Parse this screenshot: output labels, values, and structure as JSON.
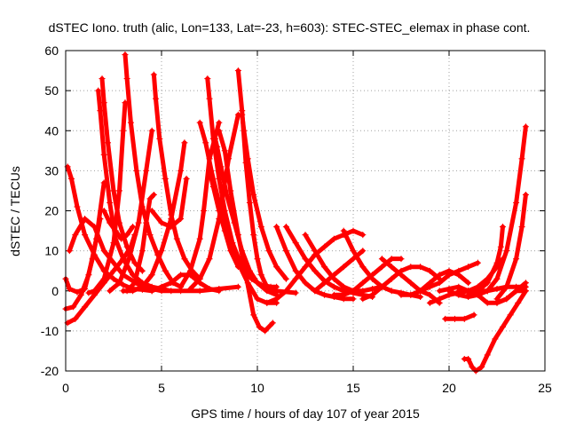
{
  "chart_data": {
    "type": "scatter",
    "title": "dSTEC Iono. truth (alic, Lon=133, Lat=-23, h=603): STEC-STEC_elemax in phase cont.",
    "xlabel": "GPS time / hours of day 107 of year 2015",
    "ylabel": "dSTEC  / TECUs",
    "xlim": [
      0,
      25
    ],
    "ylim": [
      -20,
      60
    ],
    "xticks": [
      "0",
      "5",
      "10",
      "15",
      "20",
      "25"
    ],
    "yticks": [
      "-20",
      "-10",
      "0",
      "10",
      "20",
      "30",
      "40",
      "50",
      "60"
    ],
    "grid": true,
    "marker": "+",
    "color": "#ff0000",
    "series": [
      {
        "x": [
          0.0,
          0.2,
          0.6,
          1.0,
          1.4,
          1.8
        ],
        "y": [
          3,
          0.5,
          -0.3,
          0.5,
          8,
          18
        ]
      },
      {
        "x": [
          0.1,
          0.3,
          0.6,
          1.0,
          1.5,
          2.0,
          2.5,
          3.0,
          3.5,
          4.0,
          4.5
        ],
        "y": [
          31,
          28,
          21,
          14,
          9,
          5,
          3,
          1.5,
          0.5,
          0.3,
          0
        ]
      },
      {
        "x": [
          0.0,
          0.4,
          0.8,
          1.2,
          1.6,
          2.0
        ],
        "y": [
          -4.5,
          -4,
          -1,
          4,
          13,
          27
        ]
      },
      {
        "x": [
          0.1,
          0.5,
          1.0,
          1.5,
          2.0,
          2.5,
          3.0,
          3.4,
          3.6
        ],
        "y": [
          -8,
          -7,
          -4,
          -1,
          2,
          5,
          8,
          11,
          14
        ]
      },
      {
        "x": [
          0.2,
          0.5,
          1.0,
          1.5,
          2.0,
          3.0,
          4.0,
          5.0,
          6.0,
          7.0,
          8.0,
          9.0
        ],
        "y": [
          10,
          14,
          18,
          16,
          10,
          4,
          1,
          0,
          0,
          0,
          0.5,
          1
        ]
      },
      {
        "x": [
          1.7,
          1.8,
          2.0,
          2.3,
          2.6,
          3.0,
          3.5,
          4.0,
          4.5,
          5.0,
          5.5
        ],
        "y": [
          50,
          45,
          34,
          22,
          13,
          8,
          4,
          2,
          1,
          0.5,
          0
        ]
      },
      {
        "x": [
          1.9,
          2.0,
          2.2,
          2.5,
          2.8,
          3.2,
          3.6,
          4.0
        ],
        "y": [
          53,
          47,
          37,
          25,
          17,
          11,
          7,
          5
        ]
      },
      {
        "x": [
          1.2,
          1.5,
          2.0,
          2.5,
          2.8,
          3.0,
          3.1
        ],
        "y": [
          -0.5,
          0,
          3,
          12,
          25,
          40,
          47
        ]
      },
      {
        "x": [
          3.1,
          3.2,
          3.4,
          3.7,
          4.0,
          4.4,
          4.8,
          5.2,
          5.6,
          6.0
        ],
        "y": [
          59,
          53,
          42,
          30,
          21,
          14,
          9,
          5,
          2,
          1
        ]
      },
      {
        "x": [
          2.0,
          2.3,
          2.6,
          2.9,
          3.2,
          3.5
        ],
        "y": [
          20,
          17,
          15,
          13,
          14,
          16
        ]
      },
      {
        "x": [
          2.3,
          2.8,
          3.3,
          3.8,
          4.2,
          4.5
        ],
        "y": [
          0,
          2,
          8,
          17,
          30,
          40
        ]
      },
      {
        "x": [
          4.6,
          4.7,
          4.9,
          5.2,
          5.5,
          5.8,
          6.2,
          6.6,
          7.0
        ],
        "y": [
          54,
          48,
          38,
          28,
          19,
          13,
          8,
          5,
          3
        ]
      },
      {
        "x": [
          3.2,
          3.6,
          4.0,
          4.2,
          4.4,
          4.6
        ],
        "y": [
          0,
          2,
          10,
          17,
          23,
          24
        ]
      },
      {
        "x": [
          3.0,
          3.5,
          4.0,
          4.5,
          5.0,
          5.5,
          6.0,
          6.2
        ],
        "y": [
          0,
          0,
          1,
          4,
          10,
          18,
          30,
          37
        ]
      },
      {
        "x": [
          4.5,
          5.0,
          5.5,
          6.0,
          6.5,
          7.0,
          7.5,
          8.0
        ],
        "y": [
          0,
          1,
          2,
          4,
          4,
          2,
          0.5,
          0
        ]
      },
      {
        "x": [
          4.5,
          5.0,
          5.5,
          6.0,
          6.3
        ],
        "y": [
          20,
          17,
          16,
          18,
          28
        ]
      },
      {
        "x": [
          6.5,
          7.0,
          7.5,
          8.0,
          8.5,
          9.0
        ],
        "y": [
          0.5,
          3,
          8,
          18,
          33,
          44
        ]
      },
      {
        "x": [
          7.4,
          7.5,
          7.7,
          8.0,
          8.3,
          8.7,
          9.2,
          9.7,
          10.2,
          10.7,
          11.0
        ],
        "y": [
          53,
          48,
          38,
          28,
          20,
          12,
          6,
          3,
          1.5,
          1,
          1
        ]
      },
      {
        "x": [
          7.8,
          7.9,
          8.1,
          8.4,
          8.8,
          9.2,
          9.6,
          10.0,
          10.5,
          11.0
        ],
        "y": [
          38,
          36,
          31,
          24,
          17,
          10,
          5,
          2,
          0,
          -1
        ]
      },
      {
        "x": [
          7.0,
          7.3,
          7.6,
          8.0,
          8.5,
          9.0,
          9.5,
          10.0,
          10.5,
          11.0
        ],
        "y": [
          42,
          37,
          30,
          22,
          14,
          7,
          2,
          -2,
          -3,
          -3
        ]
      },
      {
        "x": [
          8.0,
          8.3,
          8.6,
          9.0,
          9.4,
          9.8,
          10.1,
          10.4,
          10.8
        ],
        "y": [
          40,
          35,
          25,
          14,
          4,
          -6,
          -9,
          -10,
          -8
        ]
      },
      {
        "x": [
          9.0,
          9.2,
          9.4,
          9.6,
          9.8,
          10.0,
          10.2,
          10.5,
          11.0,
          12.0
        ],
        "y": [
          55,
          45,
          32,
          22,
          14,
          8,
          4,
          1,
          0,
          -0.5
        ]
      },
      {
        "x": [
          9.2,
          9.3,
          9.5,
          9.8,
          10.2,
          10.6,
          11.0,
          11.5
        ],
        "y": [
          44,
          40,
          33,
          24,
          16,
          10,
          6,
          3
        ]
      },
      {
        "x": [
          7.5,
          7.7,
          8.0,
          8.3,
          8.6,
          9.0
        ],
        "y": [
          30,
          26,
          20,
          15,
          10,
          6
        ]
      },
      {
        "x": [
          6.0,
          6.5,
          7.0,
          7.2,
          7.5,
          8.0
        ],
        "y": [
          1,
          5,
          13,
          20,
          33,
          42
        ]
      },
      {
        "x": [
          11.0,
          11.5,
          12.0,
          12.5,
          13.0,
          13.5,
          14.0,
          14.5,
          15.0
        ],
        "y": [
          16,
          10,
          5,
          2,
          0,
          -1,
          -1.5,
          -2,
          -2
        ]
      },
      {
        "x": [
          11.5,
          12.0,
          12.5,
          13.0,
          13.5,
          14.0,
          14.5,
          15.0,
          15.5,
          16.0
        ],
        "y": [
          16,
          12,
          8,
          5,
          2.5,
          1,
          0,
          -0.5,
          -1,
          -1.5
        ]
      },
      {
        "x": [
          10.5,
          11.0,
          11.5,
          12.0,
          12.5,
          13.0,
          13.5,
          14.0,
          14.5,
          15.0,
          15.5
        ],
        "y": [
          -3,
          -2,
          0,
          3,
          6,
          9,
          11,
          13,
          14,
          15,
          14
        ]
      },
      {
        "x": [
          12.5,
          13.0,
          13.5,
          14.0,
          14.5,
          15.0,
          15.5,
          16.0,
          16.5
        ],
        "y": [
          14,
          10,
          6,
          3,
          1,
          0,
          0,
          0.5,
          1
        ]
      },
      {
        "x": [
          14.5,
          15.0,
          15.5,
          16.0,
          16.5,
          17.0,
          17.5,
          18.0,
          18.5
        ],
        "y": [
          15,
          10,
          6,
          3,
          1,
          0,
          -0.5,
          -1,
          -1.5
        ]
      },
      {
        "x": [
          13.0,
          13.5,
          14.0,
          14.5,
          15.0,
          15.5
        ],
        "y": [
          0,
          2,
          4,
          6,
          8,
          10
        ]
      },
      {
        "x": [
          14.0,
          14.5,
          15.0,
          15.5,
          16.0,
          16.5,
          17.0,
          17.5
        ],
        "y": [
          -1,
          -1,
          0,
          2,
          4,
          6,
          8,
          8
        ]
      },
      {
        "x": [
          15.5,
          16.0,
          16.5,
          17.0,
          17.5,
          18.0,
          18.5,
          19.0,
          19.5
        ],
        "y": [
          -2,
          -1,
          1,
          3,
          5,
          6,
          6,
          5,
          3
        ]
      },
      {
        "x": [
          16.5,
          17.0,
          17.5,
          18.0,
          18.5,
          19.0,
          19.5
        ],
        "y": [
          8,
          6,
          4,
          2,
          0,
          -1,
          -3
        ]
      },
      {
        "x": [
          17.5,
          18.0,
          18.5,
          19.0,
          19.5,
          20.0,
          20.5,
          21.0
        ],
        "y": [
          -1,
          -1,
          0,
          2,
          4,
          5,
          4,
          2
        ]
      },
      {
        "x": [
          18.5,
          19.0,
          19.5,
          20.0,
          20.5,
          21.0,
          21.5
        ],
        "y": [
          0,
          1,
          2,
          4,
          5,
          6,
          7
        ]
      },
      {
        "x": [
          19.0,
          19.5,
          20.0,
          20.5,
          21.0,
          21.5,
          22.0
        ],
        "y": [
          -3,
          -2,
          -1,
          -0.5,
          0,
          0,
          0
        ]
      },
      {
        "x": [
          20.0,
          20.5,
          21.0,
          21.5,
          22.0,
          22.5,
          23.0,
          23.5,
          24.0
        ],
        "y": [
          0,
          -1,
          -1.5,
          -1,
          0,
          0.5,
          1,
          1,
          1
        ]
      },
      {
        "x": [
          19.5,
          20.0,
          20.5,
          21.0,
          21.5,
          22.0,
          22.5,
          23.0,
          23.5,
          24.0
        ],
        "y": [
          0,
          0.5,
          1,
          0,
          -1,
          -3,
          -3,
          -2,
          0,
          0
        ]
      },
      {
        "x": [
          19.8,
          20.3,
          20.8,
          21.3
        ],
        "y": [
          -7,
          -7,
          -7,
          -6
        ]
      },
      {
        "x": [
          20.8,
          21.0,
          21.2,
          21.4,
          21.7,
          22.0,
          22.4,
          22.8,
          23.2,
          23.6,
          24.0
        ],
        "y": [
          -17,
          -17,
          -19,
          -20,
          -19,
          -16,
          -12,
          -9,
          -6,
          -3,
          0
        ]
      },
      {
        "x": [
          20.5,
          21.0,
          21.5,
          22.0,
          22.5,
          22.8
        ],
        "y": [
          0,
          0,
          1,
          3,
          6,
          8
        ]
      },
      {
        "x": [
          21.0,
          21.5,
          22.0,
          22.5,
          22.7,
          22.8
        ],
        "y": [
          -1,
          0,
          2,
          7,
          11,
          16
        ]
      },
      {
        "x": [
          22.5,
          23.0,
          23.5,
          23.8,
          24.0
        ],
        "y": [
          -2,
          1,
          8,
          16,
          24
        ]
      },
      {
        "x": [
          22.0,
          22.5,
          23.0,
          23.5,
          23.8,
          24.0
        ],
        "y": [
          0,
          3,
          10,
          22,
          33,
          41
        ]
      },
      {
        "x": [
          22.5,
          23.0,
          23.5,
          24.0
        ],
        "y": [
          -3,
          -2,
          0,
          2
        ]
      }
    ]
  }
}
